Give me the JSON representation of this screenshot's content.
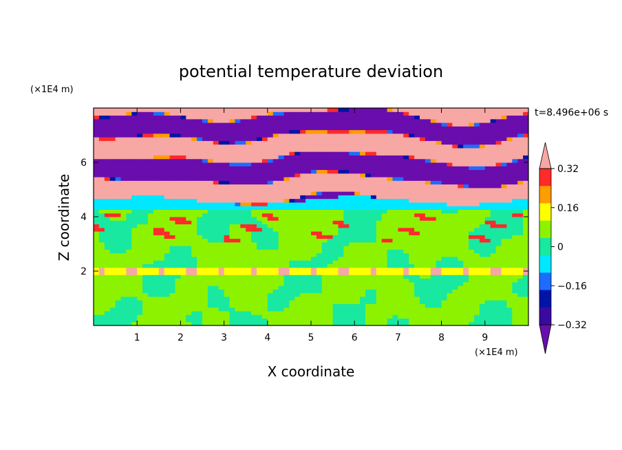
{
  "chart_data": {
    "type": "heatmap",
    "title": "potential temperature deviation",
    "xlabel": "X coordinate",
    "ylabel": "Z coordinate",
    "x_unit": "(×1E4 m)",
    "y_unit": "(×1E4 m)",
    "time_label": "t=8.496e+06 s",
    "xlim": [
      0,
      10
    ],
    "ylim": [
      0,
      8
    ],
    "x_ticks": [
      1,
      2,
      3,
      4,
      5,
      6,
      7,
      8,
      9
    ],
    "y_ticks": [
      2,
      4,
      6
    ],
    "colorbar": {
      "levels": [
        -0.4,
        -0.32,
        -0.24,
        -0.16,
        -0.08,
        0,
        0.08,
        0.16,
        0.24,
        0.32,
        0.4
      ],
      "tick_labels": [
        "0.32",
        "0.16",
        "0",
        "−0.16",
        "−0.32"
      ],
      "tick_values": [
        0.32,
        0.16,
        0,
        -0.16,
        -0.32
      ],
      "colors": [
        "#6a0dad",
        "#3a0aa0",
        "#0014a8",
        "#1e6cff",
        "#00e8ff",
        "#19e8a0",
        "#8df200",
        "#ffff00",
        "#ff9d00",
        "#ff2a2a",
        "#f7a7a4"
      ],
      "extend": "both"
    },
    "fields": {
      "lower_layer": {
        "z_range": [
          0,
          4.6
        ],
        "dominant_value": 0.04,
        "secondary_value": -0.04
      },
      "interface": {
        "z": 2.0,
        "extreme_min": -0.3,
        "extreme_max": 0.35
      },
      "upper_layer": {
        "z_range": [
          4.6,
          8
        ],
        "alternating_values": [
          0.45,
          -0.45
        ]
      }
    }
  }
}
